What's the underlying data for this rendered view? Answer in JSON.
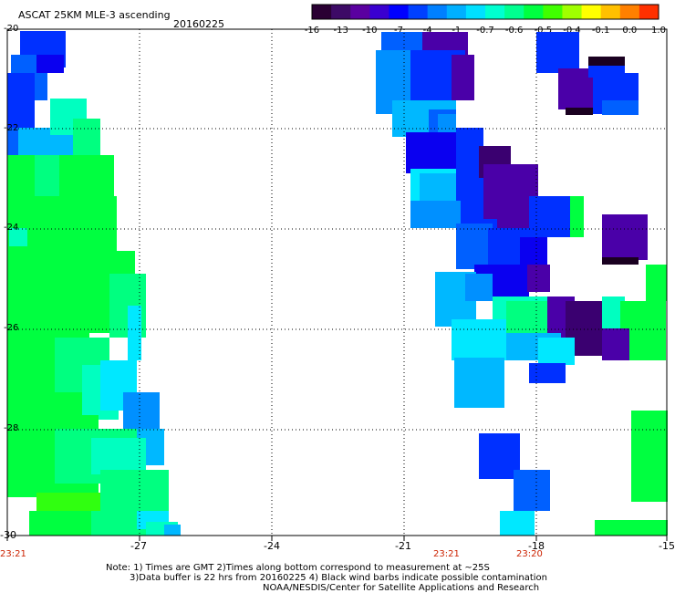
{
  "header": {
    "title": "ASCAT 25KM MLE-3 ascending",
    "date": "20160225"
  },
  "colorbar": {
    "colors": [
      "#2a0033",
      "#3d0a66",
      "#5a00a0",
      "#3a00d0",
      "#0000ff",
      "#0040ff",
      "#0080ff",
      "#00b0ff",
      "#00e0ff",
      "#00ffd0",
      "#00ff90",
      "#00ff40",
      "#40ff00",
      "#a0ff00",
      "#ffff00",
      "#ffc000",
      "#ff8000",
      "#ff3000"
    ],
    "labels": [
      "-16",
      "-13",
      "-10",
      "-7",
      "-4",
      "-1",
      "-0.7",
      "-0.6",
      "-0.5",
      "-0.4",
      "-0.1",
      "0.0",
      "1.0"
    ]
  },
  "axes": {
    "lat_labels": [
      "-20",
      "-22",
      "-24",
      "-26",
      "-28",
      "-30"
    ],
    "lon_labels": [
      "-27",
      "-24",
      "-21",
      "-18",
      "-15"
    ]
  },
  "times": {
    "left": "23:21",
    "mid1": "23:21",
    "mid2": "23:20"
  },
  "notes": {
    "line1": "Note: 1) Times are GMT 2)Times along bottom correspond to measurement at ~25S",
    "line2": "3)Data buffer is 22 hrs from 20160225 4) Black wind barbs indicate possible contamination",
    "line3": "NOAA/NESDIS/Center for Satellite Applications and Research"
  }
}
